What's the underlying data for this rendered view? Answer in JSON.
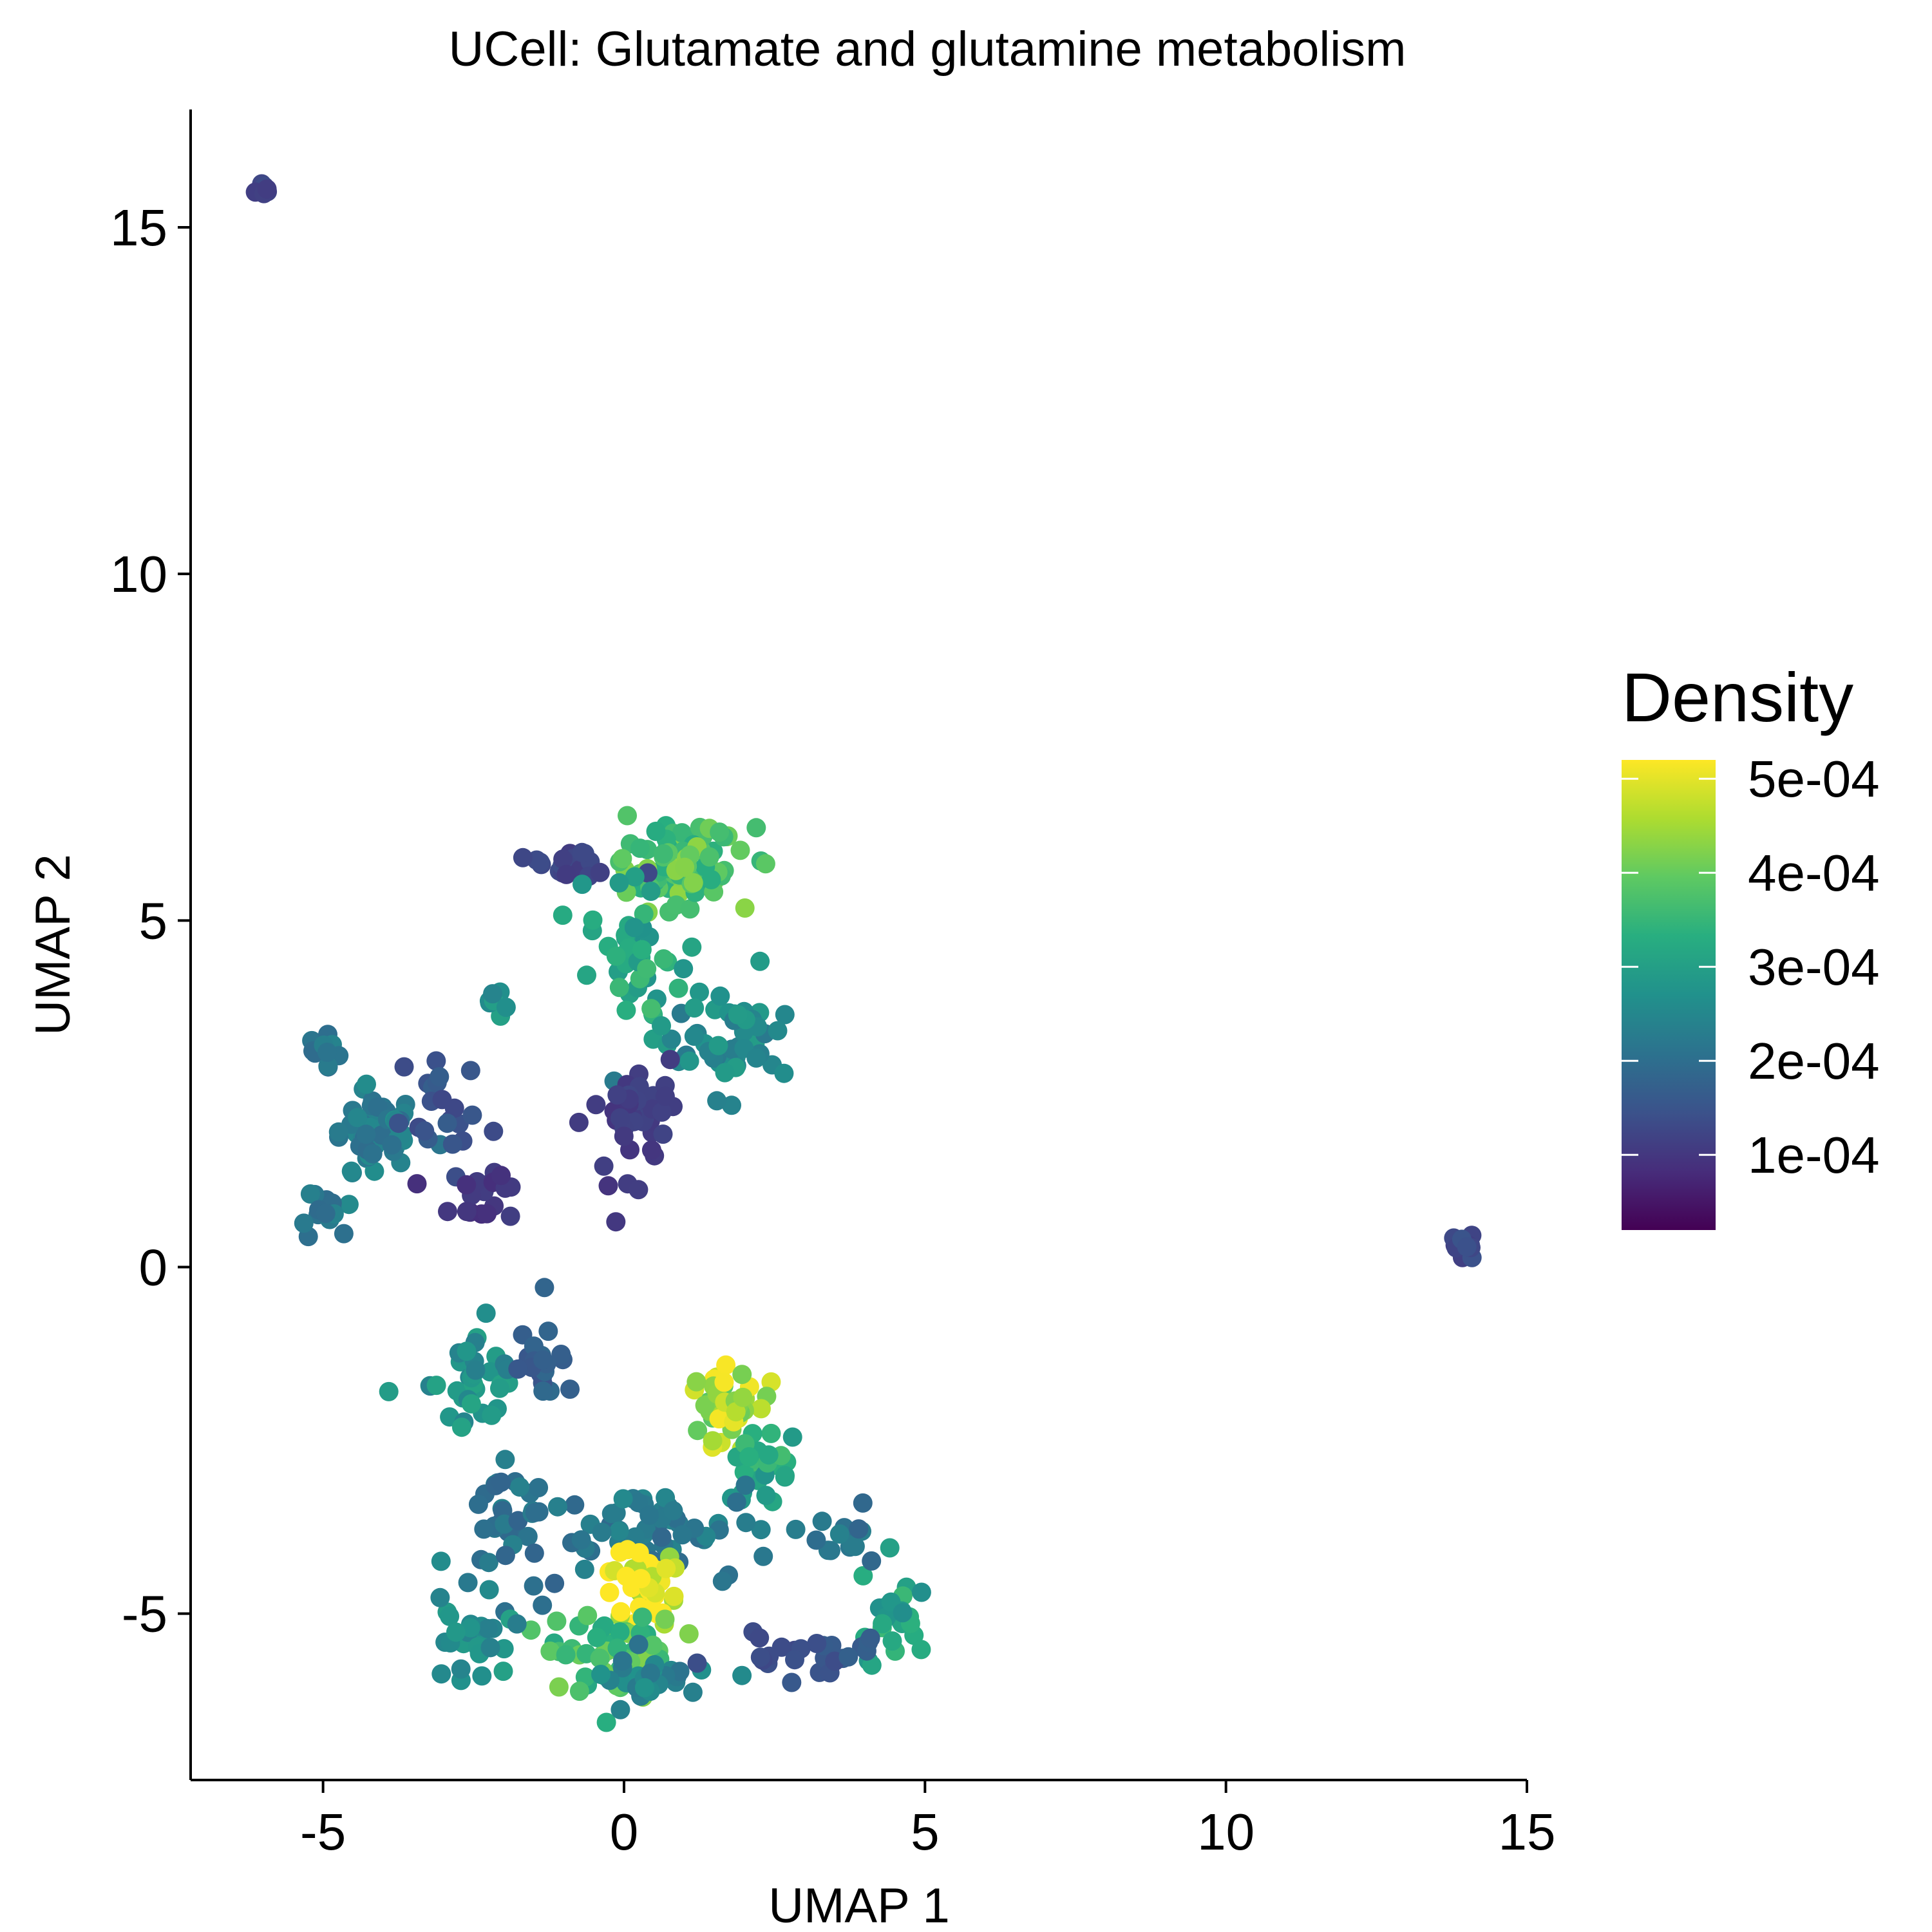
{
  "chart_data": {
    "type": "scatter",
    "title": "UCell: Glutamate and glutamine metabolism",
    "xlabel": "UMAP 1",
    "ylabel": "UMAP 2",
    "xlim": [
      -7.2,
      15.0
    ],
    "ylim": [
      -7.4,
      16.7
    ],
    "xticks": [
      -5,
      0,
      5,
      10,
      15
    ],
    "yticks": [
      -5,
      0,
      5,
      10,
      15
    ],
    "x_tick_labels": [
      "-5",
      "0",
      "5",
      "10",
      "15"
    ],
    "y_tick_labels": [
      "-5",
      "0",
      "5",
      "10",
      "15"
    ],
    "grid": false,
    "legend": {
      "title": "Density",
      "position": "right",
      "colormap": "viridis",
      "range": [
        2e-05,
        0.00052
      ],
      "ticks": [
        0.0001,
        0.0002,
        0.0003,
        0.0004,
        0.0005
      ],
      "tick_labels": [
        "1e-04",
        "2e-04",
        "3e-04",
        "4e-04",
        "5e-04"
      ]
    },
    "clusters": [
      {
        "name": "top-left outlier",
        "x": -6.0,
        "y": 15.55,
        "sx": 0.06,
        "sy": 0.08,
        "n": 8,
        "density": 0.00012
      },
      {
        "name": "right outlier",
        "x": 13.95,
        "y": 0.35,
        "sx": 0.12,
        "sy": 0.12,
        "n": 12,
        "density": 0.00013
      },
      {
        "name": "upper-center core",
        "x": 0.9,
        "y": 5.8,
        "sx": 0.55,
        "sy": 0.28,
        "n": 90,
        "density": 0.00038
      },
      {
        "name": "upper-center left arm",
        "x": -0.9,
        "y": 5.85,
        "sx": 0.45,
        "sy": 0.15,
        "n": 20,
        "density": 0.00012
      },
      {
        "name": "upper-center stem",
        "x": 0.2,
        "y": 4.5,
        "sx": 0.35,
        "sy": 0.5,
        "n": 45,
        "density": 0.00032
      },
      {
        "name": "upper-center right lobe",
        "x": 1.7,
        "y": 3.3,
        "sx": 0.55,
        "sy": 0.4,
        "n": 50,
        "density": 0.00026
      },
      {
        "name": "upper-center lower tail",
        "x": 0.0,
        "y": 2.1,
        "sx": 0.35,
        "sy": 0.55,
        "n": 40,
        "density": 0.00011
      },
      {
        "name": "left cross arm",
        "x": -5.0,
        "y": 3.1,
        "sx": 0.15,
        "sy": 0.15,
        "n": 12,
        "density": 0.00022
      },
      {
        "name": "left cross center",
        "x": -4.2,
        "y": 1.9,
        "sx": 0.35,
        "sy": 0.35,
        "n": 50,
        "density": 0.00023
      },
      {
        "name": "left cross bottom",
        "x": -5.1,
        "y": 0.8,
        "sx": 0.25,
        "sy": 0.12,
        "n": 15,
        "density": 0.00021
      },
      {
        "name": "left cross right arm",
        "x": -3.0,
        "y": 2.3,
        "sx": 0.35,
        "sy": 0.45,
        "n": 22,
        "density": 0.00015
      },
      {
        "name": "left cross lower branch",
        "x": -2.3,
        "y": 1.0,
        "sx": 0.4,
        "sy": 0.2,
        "n": 18,
        "density": 0.0001
      },
      {
        "name": "small upper streak",
        "x": -2.2,
        "y": 3.8,
        "sx": 0.15,
        "sy": 0.1,
        "n": 8,
        "density": 0.00027
      },
      {
        "name": "lower-left lobe",
        "x": -2.5,
        "y": -1.5,
        "sx": 0.35,
        "sy": 0.35,
        "n": 35,
        "density": 0.00027
      },
      {
        "name": "lower-left small lobe",
        "x": -1.4,
        "y": -1.4,
        "sx": 0.3,
        "sy": 0.35,
        "n": 22,
        "density": 0.00017
      },
      {
        "name": "lower-center hotspot",
        "x": 1.55,
        "y": -2.0,
        "sx": 0.35,
        "sy": 0.3,
        "n": 45,
        "density": 0.00045
      },
      {
        "name": "lower-center right tail",
        "x": 2.3,
        "y": -3.0,
        "sx": 0.3,
        "sy": 0.35,
        "n": 25,
        "density": 0.00032
      },
      {
        "name": "lower-center band",
        "x": 0.5,
        "y": -3.7,
        "sx": 0.85,
        "sy": 0.3,
        "n": 55,
        "density": 0.00022
      },
      {
        "name": "lower-left band",
        "x": -1.8,
        "y": -3.7,
        "sx": 0.55,
        "sy": 0.45,
        "n": 40,
        "density": 0.00021
      },
      {
        "name": "lower yellow peak",
        "x": 0.3,
        "y": -4.6,
        "sx": 0.3,
        "sy": 0.3,
        "n": 40,
        "density": 0.00051
      },
      {
        "name": "lower green arc",
        "x": -0.2,
        "y": -5.6,
        "sx": 0.6,
        "sy": 0.3,
        "n": 55,
        "density": 0.00037
      },
      {
        "name": "lower bottom ring",
        "x": 0.6,
        "y": -5.9,
        "sx": 0.6,
        "sy": 0.2,
        "n": 25,
        "density": 0.00024
      },
      {
        "name": "lower bottom-left lobe",
        "x": -2.5,
        "y": -5.3,
        "sx": 0.35,
        "sy": 0.3,
        "n": 28,
        "density": 0.00027
      },
      {
        "name": "lower right arm",
        "x": 4.4,
        "y": -5.1,
        "sx": 0.25,
        "sy": 0.4,
        "n": 25,
        "density": 0.00031
      },
      {
        "name": "lower right upper lobe",
        "x": 3.7,
        "y": -3.9,
        "sx": 0.25,
        "sy": 0.2,
        "n": 15,
        "density": 0.00021
      },
      {
        "name": "lower right bottom band",
        "x": 3.1,
        "y": -5.6,
        "sx": 0.6,
        "sy": 0.15,
        "n": 25,
        "density": 0.00015
      }
    ]
  }
}
